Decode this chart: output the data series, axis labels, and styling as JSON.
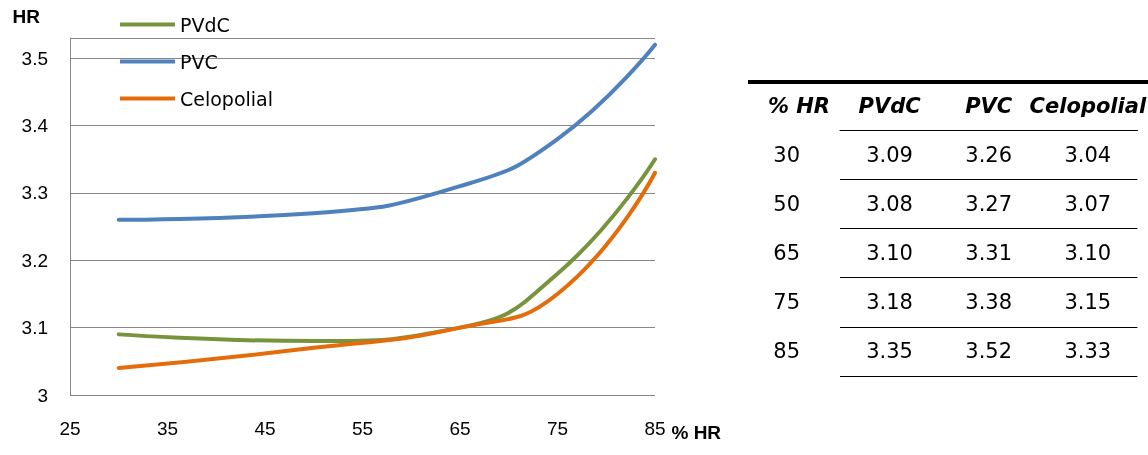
{
  "chart_data": [
    {
      "type": "line",
      "xlabel": "% HR",
      "ylabel": "HR",
      "x": [
        30,
        50,
        65,
        75,
        85
      ],
      "series": [
        {
          "name": "PVdC",
          "color": "#77933c",
          "values": [
            3.09,
            3.08,
            3.1,
            3.18,
            3.35
          ]
        },
        {
          "name": "PVC",
          "color": "#4f81bd",
          "values": [
            3.26,
            3.27,
            3.31,
            3.38,
            3.52
          ]
        },
        {
          "name": "Celopolial",
          "color": "#e46c0a",
          "values": [
            3.04,
            3.07,
            3.1,
            3.15,
            3.33
          ]
        }
      ],
      "xlim": [
        25,
        85
      ],
      "xticks": [
        25,
        35,
        45,
        55,
        65,
        75,
        85
      ],
      "ylim": [
        3,
        3.53
      ],
      "yticks": [
        3,
        3.1,
        3.2,
        3.3,
        3.4,
        3.5
      ],
      "grid": "y",
      "legend": "top left",
      "marker": "none",
      "line_style": "solid"
    },
    {
      "type": "heatmap",
      "ylabel": "% HR",
      "categories": [
        "PVdC",
        "PVC",
        "Celopolial"
      ],
      "y_categories": [
        "30",
        "50",
        "65",
        "75",
        "85"
      ],
      "cells": [
        [
          3.09,
          3.26,
          3.04
        ],
        [
          3.08,
          3.27,
          3.07
        ],
        [
          3.1,
          3.31,
          3.1
        ],
        [
          3.18,
          3.38,
          3.15
        ],
        [
          3.35,
          3.52,
          3.33
        ]
      ],
      "cell_labels": [
        [
          "3.09",
          "3.26",
          "3.04"
        ],
        [
          "3.08",
          "3.27",
          "3.07"
        ],
        [
          "3.10",
          "3.31",
          "3.10"
        ],
        [
          "3.18",
          "3.38",
          "3.15"
        ],
        [
          "3.35",
          "3.52",
          "3.33"
        ]
      ],
      "data_labels": true
    }
  ]
}
